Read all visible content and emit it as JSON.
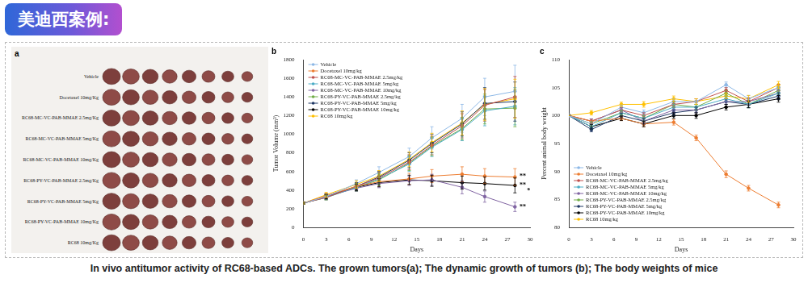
{
  "header": "美迪西案例:",
  "caption": "In vivo antitumor activity of RC68-based ADCs. The grown tumors(a); The dynamic growth of tumors (b); The body weights of mice",
  "panel_a": {
    "title": "a",
    "rows": [
      {
        "label": "Vehicle",
        "count": 8
      },
      {
        "label": "Docetaxel 10mg/Kg",
        "count": 8
      },
      {
        "label": "RC68-MC-VC-PAB-MMAE 2.5mg/Kg",
        "count": 8
      },
      {
        "label": "RC68-MC-VC-PAB-MMAE 5mg/Kg",
        "count": 8
      },
      {
        "label": "RC68-MC-VC-PAB-MMAE 10mg/Kg",
        "count": 8
      },
      {
        "label": "RC68-PY-VC-PAB-MMAE 2.5mg/Kg",
        "count": 8
      },
      {
        "label": "RC68-PY-VC-PAB-MMAE 5mg/Kg",
        "count": 8
      },
      {
        "label": "RC68-PY-VC-PAB-MMAE 10mg/Kg",
        "count": 8
      },
      {
        "label": "RC68 10mg/Kg",
        "count": 8
      }
    ]
  },
  "chart_data": [
    {
      "type": "line",
      "title": "b",
      "x_label": "Days",
      "y_label": "Tumor Volume (mm³)",
      "x": [
        0,
        3,
        7,
        10,
        14,
        17,
        21,
        24,
        28
      ],
      "xlim": [
        0,
        30
      ],
      "xticks": [
        0,
        3,
        6,
        9,
        12,
        15,
        18,
        21,
        24,
        27,
        30
      ],
      "ylim": [
        0,
        1800
      ],
      "yticks": [
        0,
        200,
        400,
        600,
        800,
        1000,
        1200,
        1400,
        1600,
        1800
      ],
      "grid": false,
      "legend": "upper left",
      "marker": "circle",
      "series": [
        {
          "name": "Vehicle",
          "color": "#8db8e6",
          "values": [
            260,
            330,
            470,
            590,
            760,
            960,
            1170,
            1400,
            1460
          ],
          "errors": [
            10,
            30,
            40,
            60,
            90,
            120,
            150,
            200,
            280
          ]
        },
        {
          "name": "Docetaxel 10mg/kg",
          "color": "#ed7d31",
          "values": [
            260,
            340,
            440,
            490,
            520,
            550,
            570,
            550,
            540
          ],
          "errors": [
            10,
            25,
            40,
            50,
            60,
            70,
            80,
            80,
            90
          ]
        },
        {
          "name": "RC68-MC-VC-PAB-MMAE 2.5mg/kg",
          "color": "#c0504d",
          "values": [
            260,
            320,
            440,
            530,
            700,
            880,
            1090,
            1310,
            1400
          ],
          "errors": [
            10,
            25,
            40,
            60,
            80,
            100,
            130,
            170,
            220
          ]
        },
        {
          "name": "RC68-MC-VC-PAB-MMAE 5mg/kg",
          "color": "#4bacc6",
          "values": [
            260,
            320,
            430,
            520,
            680,
            860,
            1050,
            1250,
            1300
          ],
          "errors": [
            10,
            25,
            40,
            60,
            80,
            100,
            120,
            160,
            200
          ]
        },
        {
          "name": "RC68-MC-VC-PAB-MMAE 10mg/kg",
          "color": "#8064a2",
          "values": [
            260,
            330,
            420,
            470,
            500,
            510,
            430,
            330,
            220
          ],
          "errors": [
            10,
            25,
            35,
            45,
            50,
            60,
            70,
            60,
            50
          ]
        },
        {
          "name": "RC68-PY-VC-PAB-MMAE 2.5mg/kg",
          "color": "#70ad47",
          "values": [
            260,
            320,
            430,
            510,
            690,
            870,
            1060,
            1270,
            1280
          ],
          "errors": [
            10,
            25,
            40,
            60,
            80,
            100,
            120,
            160,
            200
          ]
        },
        {
          "name": "RC68-PY-VC-PAB-MMAE 5mg/kg",
          "color": "#1f3864",
          "values": [
            260,
            330,
            440,
            540,
            720,
            900,
            1110,
            1330,
            1350
          ],
          "errors": [
            10,
            25,
            40,
            60,
            80,
            100,
            130,
            170,
            210
          ]
        },
        {
          "name": "RC68-PY-VC-PAB-MMAE 10mg/kg",
          "color": "#000000",
          "values": [
            260,
            330,
            430,
            480,
            510,
            500,
            480,
            470,
            450
          ],
          "errors": [
            10,
            25,
            35,
            45,
            50,
            60,
            70,
            70,
            80
          ]
        },
        {
          "name": "RC68 10mg/kg",
          "color": "#ffc000",
          "values": [
            260,
            350,
            460,
            550,
            730,
            910,
            1120,
            1320,
            1380
          ],
          "errors": [
            10,
            25,
            40,
            60,
            80,
            100,
            130,
            170,
            210
          ]
        }
      ],
      "annotations": [
        {
          "text": "**",
          "x": 28.6,
          "y": 550
        },
        {
          "text": "**",
          "x": 28.6,
          "y": 450
        },
        {
          "text": "**",
          "x": 28.6,
          "y": 220
        },
        {
          "text": "*",
          "x": 29.6,
          "y": 390
        }
      ]
    },
    {
      "type": "line",
      "title": "c",
      "x_label": "Days",
      "y_label": "Percent animal body weight",
      "x": [
        0,
        3,
        7,
        10,
        14,
        17,
        21,
        24,
        28
      ],
      "xlim": [
        0,
        30
      ],
      "xticks": [
        0,
        3,
        6,
        9,
        12,
        15,
        18,
        21,
        24,
        27,
        30
      ],
      "ylim": [
        80,
        110
      ],
      "yticks": [
        80,
        85,
        90,
        95,
        100,
        105,
        110
      ],
      "grid": false,
      "legend": "lower left",
      "marker": "circle",
      "series": [
        {
          "name": "Vehicle",
          "color": "#8db8e6",
          "values": [
            100,
            98.5,
            101.5,
            100.5,
            102.5,
            102.5,
            105.5,
            103,
            105
          ],
          "errors": [
            0,
            0.4,
            0.4,
            0.5,
            0.5,
            0.5,
            0.5,
            0.6,
            0.6
          ]
        },
        {
          "name": "Docetaxel 10mg/kg",
          "color": "#ed7d31",
          "values": [
            100,
            99,
            99.5,
            98.5,
            98.8,
            96,
            89.5,
            87,
            84
          ],
          "errors": [
            0,
            0.4,
            0.4,
            0.5,
            0.5,
            0.5,
            0.6,
            0.5,
            0.5
          ]
        },
        {
          "name": "RC68-MC-VC-PAB-MMAE 2.5mg/kg",
          "color": "#c0504d",
          "values": [
            100,
            99,
            101,
            100,
            102,
            102.5,
            104.5,
            102.5,
            105
          ],
          "errors": [
            0,
            0.4,
            0.4,
            0.5,
            0.5,
            0.5,
            0.5,
            0.6,
            0.6
          ]
        },
        {
          "name": "RC68-MC-VC-PAB-MMAE 5mg/kg",
          "color": "#4bacc6",
          "values": [
            100,
            98,
            100.5,
            99.5,
            101.5,
            101.5,
            103,
            102,
            104
          ],
          "errors": [
            0,
            0.4,
            0.4,
            0.5,
            0.5,
            0.5,
            0.5,
            0.6,
            0.6
          ]
        },
        {
          "name": "RC68-MC-VC-PAB-MMAE 10mg/kg",
          "color": "#8064a2",
          "values": [
            100,
            99,
            101,
            99,
            101,
            101,
            102.5,
            102.5,
            104
          ],
          "errors": [
            0,
            0.4,
            0.4,
            0.5,
            0.5,
            0.5,
            0.5,
            0.6,
            0.6
          ]
        },
        {
          "name": "RC68-PY-VC-PAB-MMAE 2.5mg/kg",
          "color": "#70ad47",
          "values": [
            100,
            98.5,
            100.5,
            99.5,
            102,
            101.5,
            104,
            102,
            104.5
          ],
          "errors": [
            0,
            0.4,
            0.4,
            0.5,
            0.5,
            0.5,
            0.5,
            0.6,
            0.6
          ]
        },
        {
          "name": "RC68-PY-VC-PAB-MMAE 5mg/kg",
          "color": "#1f3864",
          "values": [
            100,
            97.5,
            100,
            99,
            100.5,
            101,
            102.5,
            102,
            103.5
          ],
          "errors": [
            0,
            0.4,
            0.4,
            0.5,
            0.5,
            0.5,
            0.5,
            0.6,
            0.6
          ]
        },
        {
          "name": "RC68-PY-VC-PAB-MMAE 10mg/kg",
          "color": "#000000",
          "values": [
            100,
            98,
            99.5,
            98.5,
            100,
            100,
            101.5,
            102,
            103
          ],
          "errors": [
            0,
            0.4,
            0.4,
            0.5,
            0.5,
            0.5,
            0.5,
            0.6,
            0.6
          ]
        },
        {
          "name": "RC68 10mg/kg",
          "color": "#ffc000",
          "values": [
            100,
            100.5,
            102,
            102,
            103,
            102.5,
            103.5,
            103,
            105.5
          ],
          "errors": [
            0,
            0.4,
            0.4,
            0.5,
            0.5,
            0.5,
            0.5,
            0.6,
            0.6
          ]
        }
      ]
    }
  ]
}
